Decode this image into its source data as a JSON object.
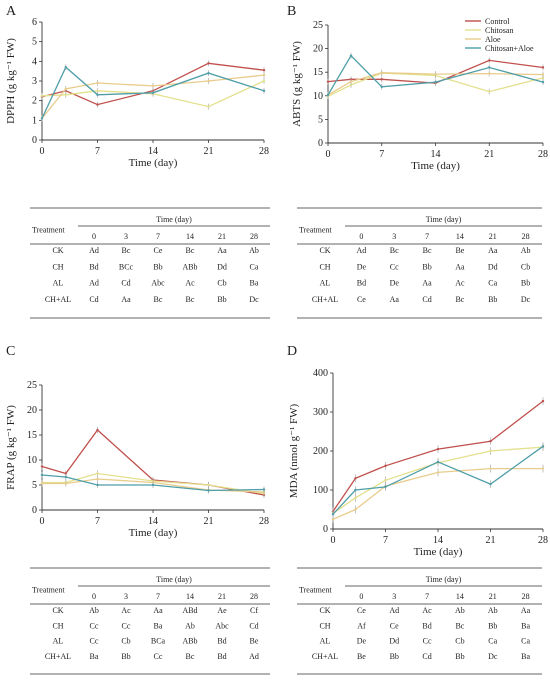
{
  "panels": [
    {
      "letter": "A",
      "ylabel": "DPPH (g kg⁻¹ FW)",
      "xlabel": "Time (day)",
      "legend": false,
      "table": {
        "header_title": "Time (day)",
        "treatment_label": "Treatment",
        "columns": [
          "0",
          "3",
          "7",
          "14",
          "21",
          "28"
        ],
        "rows": [
          {
            "label": "CK",
            "cells": [
              "Ad",
              "Bc",
              "Ce",
              "Bc",
              "Aa",
              "Ab"
            ]
          },
          {
            "label": "CH",
            "cells": [
              "Bd",
              "BCc",
              "Bb",
              "ABb",
              "Dd",
              "Ca"
            ]
          },
          {
            "label": "AL",
            "cells": [
              "Ad",
              "Cd",
              "Abc",
              "Ac",
              "Cb",
              "Ba"
            ]
          },
          {
            "label": "CH+AL",
            "cells": [
              "Cd",
              "Aa",
              "Bc",
              "Bc",
              "Bb",
              "Dc"
            ]
          }
        ]
      }
    },
    {
      "letter": "B",
      "ylabel": "ABTS (g kg⁻¹ FW)",
      "xlabel": "Time (day)",
      "legend": true,
      "table": {
        "header_title": "Time (day)",
        "treatment_label": "Treatment",
        "columns": [
          "0",
          "3",
          "7",
          "14",
          "21",
          "28"
        ],
        "rows": [
          {
            "label": "CK",
            "cells": [
              "Ad",
              "Bc",
              "Bc",
              "Be",
              "Aa",
              "Ab"
            ]
          },
          {
            "label": "CH",
            "cells": [
              "De",
              "Cc",
              "Bb",
              "Aa",
              "Dd",
              "Cb"
            ]
          },
          {
            "label": "AL",
            "cells": [
              "Bd",
              "De",
              "Aa",
              "Ac",
              "Ca",
              "Bb"
            ]
          },
          {
            "label": "CH+AL",
            "cells": [
              "Ce",
              "Aa",
              "Cd",
              "Bc",
              "Bb",
              "Dc"
            ]
          }
        ]
      }
    },
    {
      "letter": "C",
      "ylabel": "FRAP (g kg⁻¹ FW)",
      "xlabel": "Time (day)",
      "legend": false,
      "table": {
        "header_title": "Time (day)",
        "treatment_label": "Treatment",
        "columns": [
          "0",
          "3",
          "7",
          "14",
          "21",
          "28"
        ],
        "rows": [
          {
            "label": "CK",
            "cells": [
              "Ab",
              "Ac",
              "Aa",
              "ABd",
              "Ae",
              "Cf"
            ]
          },
          {
            "label": "CH",
            "cells": [
              "Cc",
              "Cc",
              "Ba",
              "Ab",
              "Abc",
              "Cd"
            ]
          },
          {
            "label": "AL",
            "cells": [
              "Cc",
              "Cb",
              "BCa",
              "ABb",
              "Bd",
              "Be"
            ]
          },
          {
            "label": "CH+AL",
            "cells": [
              "Ba",
              "Bb",
              "Cc",
              "Bc",
              "Bd",
              "Ad"
            ]
          }
        ]
      }
    },
    {
      "letter": "D",
      "ylabel": "MDA (nmol g⁻¹ FW)",
      "xlabel": "Time (day)",
      "legend": false,
      "table": {
        "header_title": "Time (day)",
        "treatment_label": "Treatment",
        "columns": [
          "0",
          "3",
          "7",
          "14",
          "21",
          "28"
        ],
        "rows": [
          {
            "label": "CK",
            "cells": [
              "Ce",
              "Ad",
              "Ac",
              "Ab",
              "Ab",
              "Aa"
            ]
          },
          {
            "label": "CH",
            "cells": [
              "Af",
              "Ce",
              "Bd",
              "Bc",
              "Bb",
              "Ba"
            ]
          },
          {
            "label": "AL",
            "cells": [
              "De",
              "Dd",
              "Cc",
              "Cb",
              "Ca",
              "Ca"
            ]
          },
          {
            "label": "CH+AL",
            "cells": [
              "Be",
              "Bb",
              "Cd",
              "Bb",
              "Dc",
              "Ba"
            ]
          }
        ]
      }
    }
  ],
  "colors": {
    "Control": "#c0504d",
    "Chitosan": "#e3e08c",
    "Aloe": "#e8cc8c",
    "Chitosan+Aloe": "#4f9ea8"
  },
  "chart_data": [
    {
      "type": "line",
      "ylabel": "DPPH (g kg⁻¹ FW)",
      "xlabel": "Time (day)",
      "xlim": [
        0,
        28
      ],
      "ylim": [
        0,
        6
      ],
      "xticks": [
        0,
        7,
        14,
        21,
        28
      ],
      "yticks": [
        0,
        1,
        2,
        3,
        4,
        5,
        6
      ],
      "x": [
        0,
        3,
        7,
        14,
        21,
        28
      ],
      "series": [
        {
          "name": "Control",
          "values": [
            2.2,
            2.5,
            1.8,
            2.5,
            3.9,
            3.55
          ]
        },
        {
          "name": "Chitosan",
          "values": [
            2.25,
            2.3,
            2.5,
            2.35,
            1.7,
            3.0
          ]
        },
        {
          "name": "Aloe",
          "values": [
            1.1,
            2.6,
            2.9,
            2.75,
            3.0,
            3.3
          ]
        },
        {
          "name": "Chitosan+Aloe",
          "values": [
            1.1,
            3.7,
            2.3,
            2.4,
            3.4,
            2.5
          ]
        }
      ]
    },
    {
      "type": "line",
      "ylabel": "ABTS (g kg⁻¹ FW)",
      "xlabel": "Time (day)",
      "xlim": [
        0,
        28
      ],
      "ylim": [
        0,
        25
      ],
      "xticks": [
        0,
        7,
        14,
        21,
        28
      ],
      "yticks": [
        0,
        5,
        10,
        15,
        20,
        25
      ],
      "x": [
        0,
        3,
        7,
        14,
        21,
        28
      ],
      "series": [
        {
          "name": "Control",
          "values": [
            13.0,
            13.5,
            13.5,
            12.7,
            17.5,
            16.0
          ]
        },
        {
          "name": "Chitosan",
          "values": [
            9.9,
            12.3,
            14.8,
            14.3,
            10.9,
            13.8
          ]
        },
        {
          "name": "Aloe",
          "values": [
            10.2,
            13.0,
            14.9,
            14.6,
            14.7,
            14.5
          ]
        },
        {
          "name": "Chitosan+Aloe",
          "values": [
            10.2,
            18.5,
            11.9,
            12.9,
            16.0,
            12.9
          ]
        }
      ]
    },
    {
      "type": "line",
      "ylabel": "FRAP (g kg⁻¹ FW)",
      "xlabel": "Time (day)",
      "xlim": [
        0,
        28
      ],
      "ylim": [
        0,
        25
      ],
      "xticks": [
        0,
        7,
        14,
        21,
        28
      ],
      "yticks": [
        0,
        5,
        10,
        15,
        20,
        25
      ],
      "x": [
        0,
        3,
        7,
        14,
        21,
        28
      ],
      "series": [
        {
          "name": "Control",
          "values": [
            8.7,
            7.3,
            16.0,
            6.0,
            5.0,
            3.0
          ]
        },
        {
          "name": "Chitosan",
          "values": [
            5.5,
            5.5,
            7.3,
            5.8,
            5.0,
            3.3
          ]
        },
        {
          "name": "Aloe",
          "values": [
            5.3,
            5.3,
            6.2,
            5.5,
            4.0,
            3.6
          ]
        },
        {
          "name": "Chitosan+Aloe",
          "values": [
            7.0,
            6.6,
            5.0,
            5.0,
            3.9,
            4.1
          ]
        }
      ]
    },
    {
      "type": "line",
      "ylabel": "MDA (nmol g⁻¹ FW)",
      "xlabel": "Time (day)",
      "xlim": [
        0,
        28
      ],
      "ylim": [
        0,
        400
      ],
      "xticks": [
        0,
        7,
        14,
        21,
        28
      ],
      "yticks": [
        0,
        100,
        200,
        300,
        400
      ],
      "x": [
        0,
        3,
        7,
        14,
        21,
        28
      ],
      "series": [
        {
          "name": "Control",
          "values": [
            45,
            130,
            162,
            205,
            225,
            328
          ]
        },
        {
          "name": "Chitosan",
          "values": [
            40,
            80,
            125,
            170,
            200,
            210
          ]
        },
        {
          "name": "Aloe",
          "values": [
            25,
            50,
            110,
            145,
            155,
            155
          ]
        },
        {
          "name": "Chitosan+Aloe",
          "values": [
            38,
            100,
            108,
            172,
            115,
            212
          ]
        }
      ]
    }
  ]
}
